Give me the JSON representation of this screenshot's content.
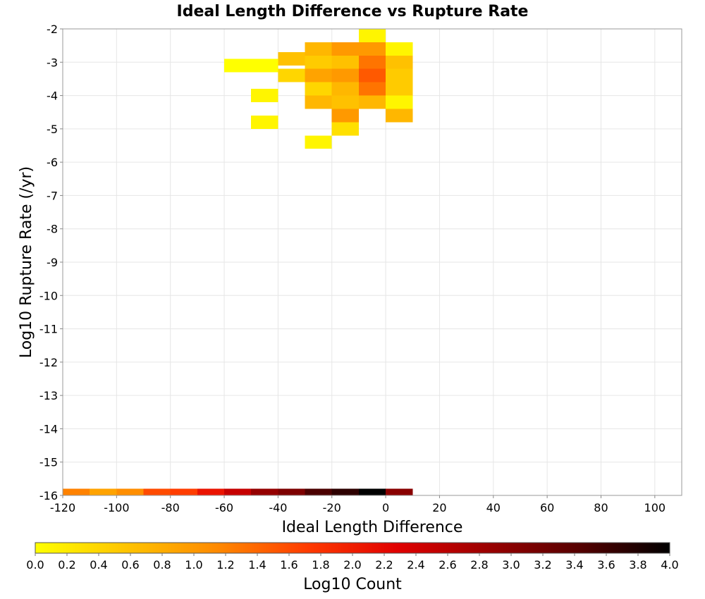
{
  "chart_data": {
    "type": "heatmap",
    "title": "Ideal Length Difference vs Rupture Rate",
    "xlabel": "Ideal Length Difference",
    "ylabel": "Log10 Rupture Rate (/yr)",
    "xlim": [
      -120,
      110
    ],
    "ylim": [
      -16,
      -2
    ],
    "xticks": [
      "-120",
      "-100",
      "-80",
      "-60",
      "-40",
      "-20",
      "0",
      "20",
      "40",
      "60",
      "80",
      "100"
    ],
    "yticks": [
      "-16",
      "-15",
      "-14",
      "-13",
      "-12",
      "-11",
      "-10",
      "-9",
      "-8",
      "-7",
      "-6",
      "-5",
      "-4",
      "-3",
      "-2"
    ],
    "grid": true,
    "x_bin_width": 10,
    "y_bin_height": 0.4,
    "cells": [
      {
        "x": -10,
        "y": -2.2,
        "v": 0.1
      },
      {
        "x": -10,
        "y": -2.6,
        "v": 1.0
      },
      {
        "x": -10,
        "y": -3.0,
        "v": 1.3
      },
      {
        "x": -10,
        "y": -3.4,
        "v": 1.5
      },
      {
        "x": -10,
        "y": -3.8,
        "v": 1.3
      },
      {
        "x": -10,
        "y": -4.2,
        "v": 0.7
      },
      {
        "x": -20,
        "y": -2.6,
        "v": 1.0
      },
      {
        "x": -20,
        "y": -3.0,
        "v": 0.6
      },
      {
        "x": -20,
        "y": -3.4,
        "v": 1.0
      },
      {
        "x": -20,
        "y": -3.8,
        "v": 0.7
      },
      {
        "x": -20,
        "y": -4.2,
        "v": 0.6
      },
      {
        "x": -20,
        "y": -4.6,
        "v": 1.0
      },
      {
        "x": -20,
        "y": -5.0,
        "v": 0.3
      },
      {
        "x": -30,
        "y": -2.6,
        "v": 0.7
      },
      {
        "x": -30,
        "y": -3.0,
        "v": 0.5
      },
      {
        "x": -30,
        "y": -3.4,
        "v": 0.9
      },
      {
        "x": -30,
        "y": -3.8,
        "v": 0.4
      },
      {
        "x": -30,
        "y": -4.2,
        "v": 0.7
      },
      {
        "x": -30,
        "y": -5.4,
        "v": 0.1
      },
      {
        "x": 0,
        "y": -2.6,
        "v": 0.1
      },
      {
        "x": 0,
        "y": -3.0,
        "v": 0.6
      },
      {
        "x": 0,
        "y": -3.4,
        "v": 0.5
      },
      {
        "x": 0,
        "y": -3.8,
        "v": 0.5
      },
      {
        "x": 0,
        "y": -4.2,
        "v": 0.1
      },
      {
        "x": 0,
        "y": -4.6,
        "v": 0.7
      },
      {
        "x": -40,
        "y": -2.9,
        "v": 0.6
      },
      {
        "x": -40,
        "y": -3.4,
        "v": 0.4
      },
      {
        "x": -50,
        "y": -3.1,
        "v": 0.0
      },
      {
        "x": -50,
        "y": -4.0,
        "v": 0.1
      },
      {
        "x": -50,
        "y": -4.8,
        "v": 0.1
      },
      {
        "x": -60,
        "y": -3.1,
        "v": 0.0
      },
      {
        "x": -120,
        "y": -16.0,
        "v": 1.2
      },
      {
        "x": -110,
        "y": -16.0,
        "v": 0.9
      },
      {
        "x": -100,
        "y": -16.0,
        "v": 1.1
      },
      {
        "x": -90,
        "y": -16.0,
        "v": 1.6
      },
      {
        "x": -80,
        "y": -16.0,
        "v": 1.7
      },
      {
        "x": -70,
        "y": -16.0,
        "v": 2.1
      },
      {
        "x": -60,
        "y": -16.0,
        "v": 2.5
      },
      {
        "x": -50,
        "y": -16.0,
        "v": 2.9
      },
      {
        "x": -40,
        "y": -16.0,
        "v": 3.1
      },
      {
        "x": -30,
        "y": -16.0,
        "v": 3.5
      },
      {
        "x": -20,
        "y": -16.0,
        "v": 3.7
      },
      {
        "x": -10,
        "y": -16.0,
        "v": 4.0
      },
      {
        "x": 0,
        "y": -16.0,
        "v": 3.0
      }
    ],
    "colorbar": {
      "label": "Log10 Count",
      "min": 0.0,
      "max": 4.0,
      "ticks": [
        "0.0",
        "0.2",
        "0.4",
        "0.6",
        "0.8",
        "1.0",
        "1.2",
        "1.4",
        "1.6",
        "1.8",
        "2.0",
        "2.2",
        "2.4",
        "2.6",
        "2.8",
        "3.0",
        "3.2",
        "3.4",
        "3.6",
        "3.8",
        "4.0"
      ],
      "colors": [
        "#ffff00",
        "#ffc400",
        "#ff8a00",
        "#ff3b00",
        "#e00000",
        "#9a0000",
        "#560000",
        "#000000"
      ]
    }
  }
}
